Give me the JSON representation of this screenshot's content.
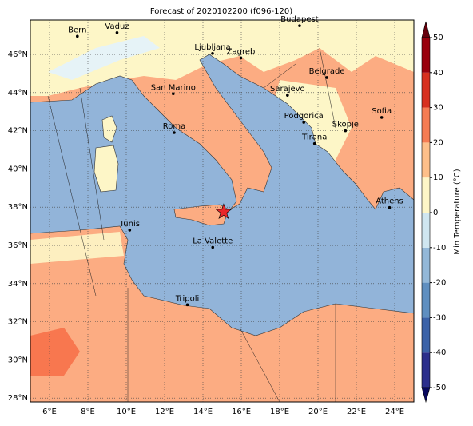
{
  "title": "Forecast of 2020102200 (f096-120)",
  "map": {
    "xlim": [
      5,
      25
    ],
    "ylim": [
      27.8,
      47.8
    ],
    "xticks": [
      {
        "value": 6,
        "label": "6°E"
      },
      {
        "value": 8,
        "label": "8°E"
      },
      {
        "value": 10,
        "label": "10°E"
      },
      {
        "value": 12,
        "label": "12°E"
      },
      {
        "value": 14,
        "label": "14°E"
      },
      {
        "value": 16,
        "label": "16°E"
      },
      {
        "value": 18,
        "label": "18°E"
      },
      {
        "value": 20,
        "label": "20°E"
      },
      {
        "value": 22,
        "label": "22°E"
      },
      {
        "value": 24,
        "label": "24°E"
      }
    ],
    "yticks": [
      {
        "value": 28,
        "label": "28°N"
      },
      {
        "value": 30,
        "label": "30°N"
      },
      {
        "value": 32,
        "label": "32°N"
      },
      {
        "value": 34,
        "label": "34°N"
      },
      {
        "value": 36,
        "label": "36°N"
      },
      {
        "value": 38,
        "label": "38°N"
      },
      {
        "value": 40,
        "label": "40°N"
      },
      {
        "value": 42,
        "label": "42°N"
      },
      {
        "value": 44,
        "label": "44°N"
      },
      {
        "value": 46,
        "label": "46°N"
      }
    ],
    "cities": [
      {
        "name": "Bern",
        "lon": 7.45,
        "lat": 46.95
      },
      {
        "name": "Vaduz",
        "lon": 9.52,
        "lat": 47.14
      },
      {
        "name": "Budapest",
        "lon": 19.04,
        "lat": 47.5
      },
      {
        "name": "Ljubljana",
        "lon": 14.5,
        "lat": 46.05
      },
      {
        "name": "Zagreb",
        "lon": 15.98,
        "lat": 45.81
      },
      {
        "name": "Belgrade",
        "lon": 20.46,
        "lat": 44.79
      },
      {
        "name": "San Marino",
        "lon": 12.45,
        "lat": 43.94
      },
      {
        "name": "Sarajevo",
        "lon": 18.41,
        "lat": 43.86
      },
      {
        "name": "Sofia",
        "lon": 23.32,
        "lat": 42.7
      },
      {
        "name": "Podgorica",
        "lon": 19.26,
        "lat": 42.44
      },
      {
        "name": "Skopje",
        "lon": 21.43,
        "lat": 42.0
      },
      {
        "name": "Roma",
        "lon": 12.5,
        "lat": 41.9
      },
      {
        "name": "Tirana",
        "lon": 19.82,
        "lat": 41.33
      },
      {
        "name": "Athens",
        "lon": 23.73,
        "lat": 37.98
      },
      {
        "name": "Tunis",
        "lon": 10.18,
        "lat": 36.8
      },
      {
        "name": "La Valette",
        "lon": 14.51,
        "lat": 35.9
      },
      {
        "name": "Tripoli",
        "lon": 13.19,
        "lat": 32.89
      }
    ],
    "star": {
      "lon": 15.08,
      "lat": 37.75,
      "color": "#e8262a"
    }
  },
  "colorbar": {
    "label": "Min Temperature (°C)",
    "clim": [
      -50,
      50
    ],
    "ticks": [
      -50,
      -40,
      -30,
      -20,
      -10,
      0,
      10,
      20,
      30,
      40,
      50
    ],
    "colors": [
      "#2b2e8c",
      "#3b62a8",
      "#5f8fc0",
      "#93b8d8",
      "#cfe6f0",
      "#fdf6c7",
      "#fdbf8a",
      "#f57c53",
      "#d7301f",
      "#99000d"
    ],
    "under": "#08085e",
    "over": "#67000d"
  }
}
